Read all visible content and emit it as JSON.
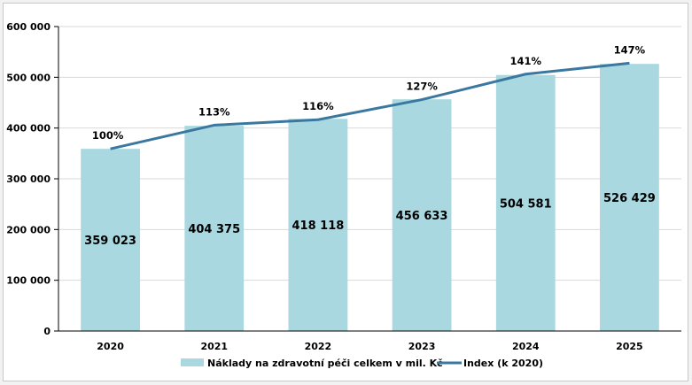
{
  "chart_data": {
    "type": "bar",
    "categories": [
      "2020",
      "2021",
      "2022",
      "2023",
      "2024",
      "2025"
    ],
    "series": [
      {
        "name": "Náklady na zdravotní péči celkem v mil. Kč",
        "type": "bar",
        "values": [
          359023,
          404375,
          418118,
          456633,
          504581,
          526429
        ],
        "data_labels": [
          "359 023",
          "404 375",
          "418 118",
          "456 633",
          "504 581",
          "526 429"
        ],
        "color": "#a9d8e0"
      },
      {
        "name": "Index (k 2020)",
        "type": "line",
        "values": [
          100,
          113,
          116,
          127,
          141,
          147
        ],
        "data_labels": [
          "100%",
          "113%",
          "116%",
          "127%",
          "141%",
          "147%"
        ],
        "color": "#3a78a0"
      }
    ],
    "ylim": [
      0,
      600000
    ],
    "yticks": [
      0,
      100000,
      200000,
      300000,
      400000,
      500000,
      600000
    ],
    "ytick_labels": [
      "0",
      "100 000",
      "200 000",
      "300 000",
      "400 000",
      "500 000",
      "600 000"
    ],
    "grid": true,
    "legend_position": "bottom"
  }
}
